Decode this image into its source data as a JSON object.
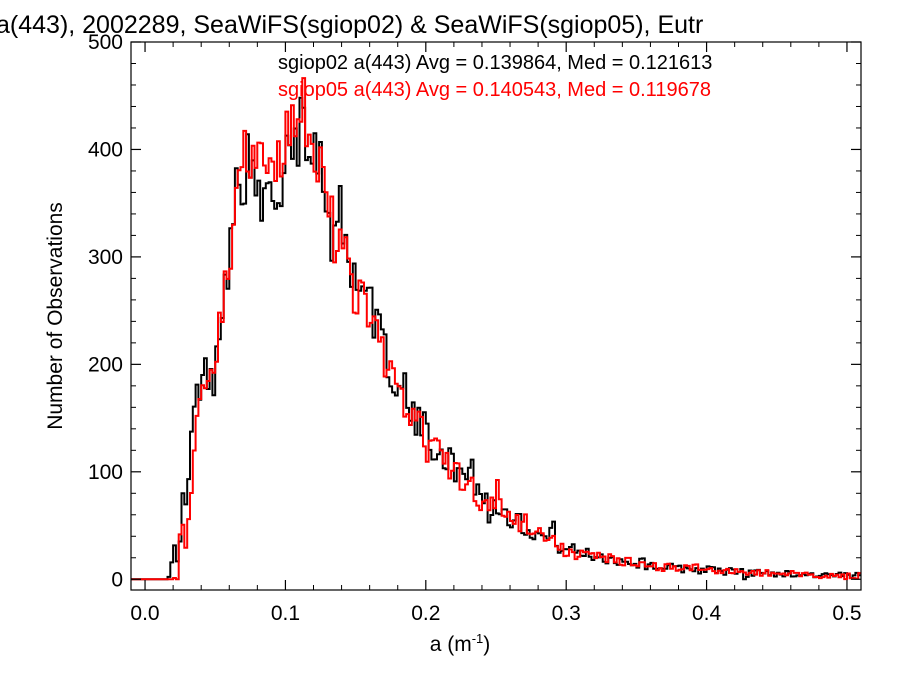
{
  "chart_data": {
    "type": "histogram",
    "title": "a(443), 2002289, SeaWiFS(sgiop02) & SeaWiFS(sgiop05), Eutr",
    "xlabel": "a (m",
    "xlabel_exp": "-1",
    "xlabel_close": ")",
    "ylabel": "Number of Observations",
    "xlim": [
      -0.01,
      0.51
    ],
    "ylim": [
      -10,
      500
    ],
    "x_ticks": [
      0.0,
      0.1,
      0.2,
      0.3,
      0.4,
      0.5
    ],
    "x_tick_labels": [
      "0.0",
      "0.1",
      "0.2",
      "0.3",
      "0.4",
      "0.5"
    ],
    "y_ticks": [
      0,
      100,
      200,
      300,
      400,
      500
    ],
    "y_tick_labels": [
      "0",
      "100",
      "200",
      "300",
      "400",
      "500"
    ],
    "bin_width": 0.002,
    "series": [
      {
        "name": "sgiop02",
        "color": "#000000",
        "legend_text": "sgiop02 a(443) Avg = 0.139864, Med = 0.121613",
        "anchors": [
          [
            0.0,
            0
          ],
          [
            0.014,
            0
          ],
          [
            0.018,
            5
          ],
          [
            0.022,
            35
          ],
          [
            0.026,
            50
          ],
          [
            0.03,
            75
          ],
          [
            0.035,
            160
          ],
          [
            0.04,
            185
          ],
          [
            0.045,
            195
          ],
          [
            0.05,
            205
          ],
          [
            0.055,
            260
          ],
          [
            0.06,
            300
          ],
          [
            0.065,
            360
          ],
          [
            0.07,
            370
          ],
          [
            0.075,
            375
          ],
          [
            0.08,
            355
          ],
          [
            0.085,
            360
          ],
          [
            0.09,
            350
          ],
          [
            0.095,
            365
          ],
          [
            0.1,
            395
          ],
          [
            0.105,
            405
          ],
          [
            0.11,
            410
          ],
          [
            0.115,
            415
          ],
          [
            0.12,
            410
          ],
          [
            0.125,
            390
          ],
          [
            0.13,
            345
          ],
          [
            0.135,
            335
          ],
          [
            0.14,
            320
          ],
          [
            0.145,
            300
          ],
          [
            0.15,
            290
          ],
          [
            0.155,
            272
          ],
          [
            0.16,
            260
          ],
          [
            0.165,
            235
          ],
          [
            0.17,
            215
          ],
          [
            0.175,
            195
          ],
          [
            0.18,
            175
          ],
          [
            0.185,
            165
          ],
          [
            0.19,
            150
          ],
          [
            0.2,
            140
          ],
          [
            0.21,
            120
          ],
          [
            0.22,
            105
          ],
          [
            0.23,
            90
          ],
          [
            0.24,
            80
          ],
          [
            0.25,
            70
          ],
          [
            0.26,
            58
          ],
          [
            0.27,
            50
          ],
          [
            0.28,
            42
          ],
          [
            0.29,
            35
          ],
          [
            0.3,
            28
          ],
          [
            0.32,
            22
          ],
          [
            0.34,
            17
          ],
          [
            0.36,
            13
          ],
          [
            0.38,
            10
          ],
          [
            0.4,
            9
          ],
          [
            0.42,
            7
          ],
          [
            0.44,
            6
          ],
          [
            0.46,
            5
          ],
          [
            0.48,
            4
          ],
          [
            0.5,
            3
          ],
          [
            0.51,
            3
          ]
        ],
        "spikes": [
          [
            0.024,
            -15
          ],
          [
            0.027,
            18
          ],
          [
            0.049,
            -18
          ],
          [
            0.073,
            20
          ],
          [
            0.083,
            -25
          ],
          [
            0.091,
            -18
          ],
          [
            0.097,
            -40
          ],
          [
            0.103,
            25
          ],
          [
            0.112,
            30
          ],
          [
            0.133,
            -20
          ],
          [
            0.139,
            30
          ],
          [
            0.147,
            -25
          ],
          [
            0.161,
            15
          ],
          [
            0.185,
            20
          ],
          [
            0.205,
            -15
          ],
          [
            0.232,
            25
          ],
          [
            0.246,
            -18
          ],
          [
            0.265,
            15
          ],
          [
            0.29,
            12
          ],
          [
            0.355,
            8
          ],
          [
            0.428,
            -6
          ]
        ]
      },
      {
        "name": "sgiop05",
        "color": "#ff0000",
        "legend_text": "sgiop05 a(443) Avg = 0.140543, Med = 0.119678",
        "anchors": [
          [
            0.0,
            0
          ],
          [
            0.018,
            0
          ],
          [
            0.024,
            2
          ],
          [
            0.028,
            10
          ],
          [
            0.032,
            70
          ],
          [
            0.036,
            150
          ],
          [
            0.04,
            185
          ],
          [
            0.045,
            200
          ],
          [
            0.05,
            205
          ],
          [
            0.055,
            250
          ],
          [
            0.06,
            300
          ],
          [
            0.065,
            350
          ],
          [
            0.068,
            370
          ],
          [
            0.07,
            400
          ],
          [
            0.075,
            395
          ],
          [
            0.08,
            385
          ],
          [
            0.085,
            380
          ],
          [
            0.09,
            380
          ],
          [
            0.095,
            385
          ],
          [
            0.1,
            410
          ],
          [
            0.105,
            420
          ],
          [
            0.11,
            425
          ],
          [
            0.115,
            420
          ],
          [
            0.12,
            405
          ],
          [
            0.125,
            385
          ],
          [
            0.13,
            345
          ],
          [
            0.135,
            330
          ],
          [
            0.14,
            310
          ],
          [
            0.145,
            292
          ],
          [
            0.15,
            280
          ],
          [
            0.155,
            262
          ],
          [
            0.16,
            250
          ],
          [
            0.165,
            228
          ],
          [
            0.17,
            210
          ],
          [
            0.175,
            190
          ],
          [
            0.18,
            172
          ],
          [
            0.185,
            160
          ],
          [
            0.19,
            148
          ],
          [
            0.2,
            137
          ],
          [
            0.21,
            118
          ],
          [
            0.22,
            102
          ],
          [
            0.23,
            88
          ],
          [
            0.24,
            78
          ],
          [
            0.25,
            68
          ],
          [
            0.26,
            57
          ],
          [
            0.27,
            48
          ],
          [
            0.28,
            41
          ],
          [
            0.29,
            34
          ],
          [
            0.3,
            27
          ],
          [
            0.32,
            21
          ],
          [
            0.34,
            16
          ],
          [
            0.36,
            12
          ],
          [
            0.38,
            10
          ],
          [
            0.4,
            8
          ],
          [
            0.42,
            7
          ],
          [
            0.44,
            6
          ],
          [
            0.46,
            5
          ],
          [
            0.48,
            4
          ],
          [
            0.5,
            3
          ],
          [
            0.51,
            3
          ]
        ],
        "spikes": [
          [
            0.026,
            40
          ],
          [
            0.049,
            -12
          ],
          [
            0.069,
            15
          ],
          [
            0.087,
            -20
          ],
          [
            0.107,
            -30
          ],
          [
            0.113,
            50
          ],
          [
            0.121,
            -15
          ],
          [
            0.126,
            20
          ],
          [
            0.135,
            -25
          ],
          [
            0.15,
            -25
          ],
          [
            0.173,
            -18
          ],
          [
            0.2,
            -15
          ],
          [
            0.221,
            15
          ],
          [
            0.238,
            -20
          ],
          [
            0.252,
            18
          ],
          [
            0.271,
            10
          ],
          [
            0.3,
            -8
          ],
          [
            0.392,
            7
          ]
        ]
      }
    ]
  }
}
